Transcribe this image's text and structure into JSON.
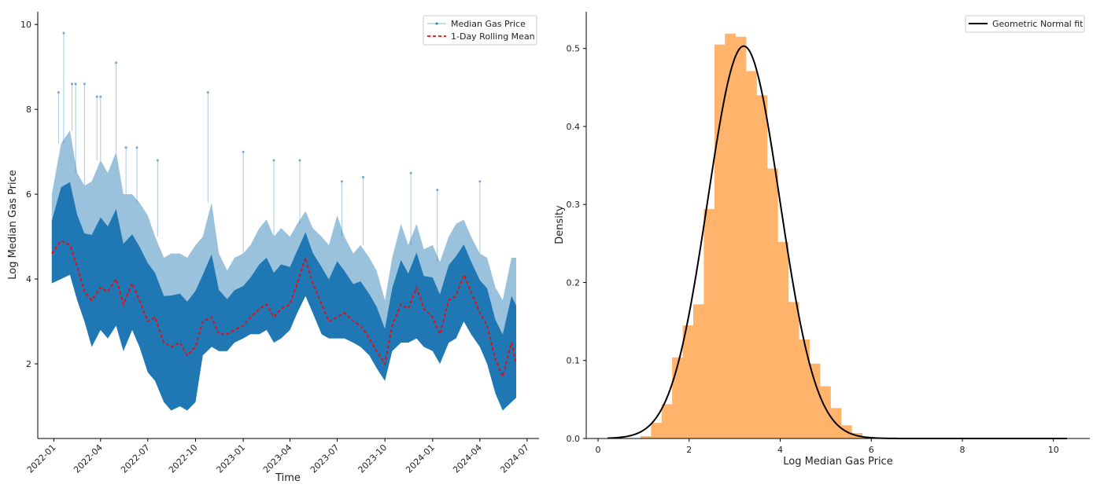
{
  "chart_data": [
    {
      "type": "line",
      "xlabel": "Time",
      "ylabel": "Log Median Gas Price",
      "xlim": [
        "2021-12-01",
        "2024-07-24"
      ],
      "ylim": [
        0.24,
        10.3
      ],
      "x_ticks": [
        "2022-01",
        "2022-04",
        "2022-07",
        "2022-10",
        "2023-01",
        "2023-04",
        "2023-07",
        "2023-10",
        "2024-01",
        "2024-04",
        "2024-07"
      ],
      "y_ticks": [
        2,
        4,
        6,
        8,
        10
      ],
      "legend_position": "top-right",
      "grid": false,
      "series": [
        {
          "name": "Median Gas Price",
          "color": "#1f77b4",
          "style": "line-with-dots"
        },
        {
          "name": "1-Day Rolling Mean",
          "color": "#ff0000",
          "style": "dashed"
        }
      ],
      "samples": {
        "columns": [
          "date",
          "rolling_mean",
          "median_low",
          "median_high"
        ],
        "rows": [
          [
            "2021-12-28",
            4.6,
            3.9,
            6.0
          ],
          [
            "2022-01-15",
            4.9,
            4.0,
            7.2
          ],
          [
            "2022-02-01",
            4.8,
            4.1,
            7.5
          ],
          [
            "2022-02-15",
            4.3,
            3.5,
            6.5
          ],
          [
            "2022-03-01",
            3.7,
            3.0,
            6.2
          ],
          [
            "2022-03-15",
            3.5,
            2.4,
            6.3
          ],
          [
            "2022-04-01",
            3.8,
            2.8,
            6.8
          ],
          [
            "2022-04-15",
            3.7,
            2.6,
            6.5
          ],
          [
            "2022-05-01",
            4.0,
            2.9,
            7.0
          ],
          [
            "2022-05-15",
            3.4,
            2.3,
            6.0
          ],
          [
            "2022-06-01",
            3.9,
            2.8,
            6.0
          ],
          [
            "2022-06-15",
            3.5,
            2.4,
            5.8
          ],
          [
            "2022-07-01",
            3.0,
            1.8,
            5.5
          ],
          [
            "2022-07-15",
            3.1,
            1.6,
            5.0
          ],
          [
            "2022-08-01",
            2.5,
            1.1,
            4.5
          ],
          [
            "2022-08-15",
            2.4,
            0.9,
            4.6
          ],
          [
            "2022-09-01",
            2.5,
            1.0,
            4.6
          ],
          [
            "2022-09-15",
            2.2,
            0.9,
            4.5
          ],
          [
            "2022-10-01",
            2.4,
            1.1,
            4.8
          ],
          [
            "2022-10-15",
            3.0,
            2.2,
            5.0
          ],
          [
            "2022-11-01",
            3.1,
            2.4,
            5.8
          ],
          [
            "2022-11-15",
            2.7,
            2.3,
            4.6
          ],
          [
            "2022-12-01",
            2.7,
            2.3,
            4.2
          ],
          [
            "2022-12-15",
            2.8,
            2.5,
            4.5
          ],
          [
            "2023-01-01",
            2.9,
            2.6,
            4.6
          ],
          [
            "2023-01-15",
            3.1,
            2.7,
            4.8
          ],
          [
            "2023-02-01",
            3.3,
            2.7,
            5.2
          ],
          [
            "2023-02-15",
            3.4,
            2.8,
            5.4
          ],
          [
            "2023-03-01",
            3.1,
            2.5,
            5.0
          ],
          [
            "2023-03-15",
            3.3,
            2.6,
            5.2
          ],
          [
            "2023-04-01",
            3.4,
            2.8,
            5.0
          ],
          [
            "2023-04-15",
            3.9,
            3.2,
            5.3
          ],
          [
            "2023-05-01",
            4.5,
            3.6,
            5.6
          ],
          [
            "2023-05-15",
            3.9,
            3.2,
            5.2
          ],
          [
            "2023-06-01",
            3.4,
            2.7,
            5.0
          ],
          [
            "2023-06-15",
            3.0,
            2.6,
            4.8
          ],
          [
            "2023-07-01",
            3.1,
            2.6,
            5.5
          ],
          [
            "2023-07-15",
            3.2,
            2.6,
            5.0
          ],
          [
            "2023-08-01",
            3.0,
            2.5,
            4.6
          ],
          [
            "2023-08-15",
            2.9,
            2.4,
            4.8
          ],
          [
            "2023-09-01",
            2.6,
            2.2,
            4.5
          ],
          [
            "2023-09-15",
            2.3,
            1.9,
            4.2
          ],
          [
            "2023-10-01",
            2.0,
            1.6,
            3.5
          ],
          [
            "2023-10-15",
            2.9,
            2.3,
            4.5
          ],
          [
            "2023-11-01",
            3.4,
            2.5,
            5.3
          ],
          [
            "2023-11-15",
            3.3,
            2.5,
            4.8
          ],
          [
            "2023-12-01",
            3.8,
            2.6,
            5.3
          ],
          [
            "2023-12-15",
            3.3,
            2.4,
            4.7
          ],
          [
            "2024-01-01",
            3.1,
            2.3,
            4.8
          ],
          [
            "2024-01-15",
            2.7,
            2.0,
            4.4
          ],
          [
            "2024-02-01",
            3.5,
            2.5,
            5.0
          ],
          [
            "2024-02-15",
            3.6,
            2.6,
            5.3
          ],
          [
            "2024-03-01",
            4.1,
            3.0,
            5.4
          ],
          [
            "2024-03-15",
            3.7,
            2.7,
            5.0
          ],
          [
            "2024-04-01",
            3.2,
            2.4,
            4.6
          ],
          [
            "2024-04-15",
            2.9,
            2.0,
            4.5
          ],
          [
            "2024-05-01",
            2.1,
            1.3,
            3.8
          ],
          [
            "2024-05-15",
            1.7,
            0.9,
            3.5
          ],
          [
            "2024-06-01",
            2.5,
            1.1,
            4.5
          ],
          [
            "2024-06-10",
            2.0,
            1.2,
            4.5
          ]
        ]
      },
      "spikes": [
        [
          "2022-01-10",
          8.4
        ],
        [
          "2022-01-20",
          9.8
        ],
        [
          "2022-02-05",
          8.6
        ],
        [
          "2022-02-12",
          8.6
        ],
        [
          "2022-03-01",
          8.6
        ],
        [
          "2022-03-25",
          8.3
        ],
        [
          "2022-04-01",
          8.3
        ],
        [
          "2022-05-01",
          9.1
        ],
        [
          "2022-05-20",
          7.1
        ],
        [
          "2022-06-10",
          7.1
        ],
        [
          "2022-07-20",
          6.8
        ],
        [
          "2022-10-25",
          8.4
        ],
        [
          "2023-01-01",
          7.0
        ],
        [
          "2023-03-01",
          6.8
        ],
        [
          "2023-04-20",
          6.8
        ],
        [
          "2023-07-10",
          6.3
        ],
        [
          "2023-08-20",
          6.4
        ],
        [
          "2023-11-20",
          6.5
        ],
        [
          "2024-01-10",
          6.1
        ],
        [
          "2024-04-01",
          6.3
        ]
      ]
    },
    {
      "type": "histogram",
      "xlabel": "Log Median Gas Price",
      "ylabel": "Density",
      "xlim": [
        -0.26,
        10.8
      ],
      "ylim": [
        0,
        0.547
      ],
      "x_ticks": [
        0,
        2,
        4,
        6,
        8,
        10
      ],
      "y_ticks": [
        0.0,
        0.1,
        0.2,
        0.3,
        0.4,
        0.5
      ],
      "legend_position": "top-right",
      "grid": false,
      "bar_color": "#ffb36b",
      "bin_start": 0.93,
      "bin_width": 0.232,
      "densities": [
        0.003,
        0.02,
        0.044,
        0.104,
        0.145,
        0.172,
        0.294,
        0.505,
        0.519,
        0.515,
        0.471,
        0.44,
        0.346,
        0.252,
        0.175,
        0.127,
        0.096,
        0.067,
        0.039,
        0.017,
        0.007,
        0.002,
        0.001
      ],
      "fit": {
        "name": "Geometric Normal fit",
        "color": "#000000",
        "mu": 3.2,
        "sigma": 0.793,
        "x_range": [
          0.21,
          10.3
        ]
      }
    }
  ]
}
